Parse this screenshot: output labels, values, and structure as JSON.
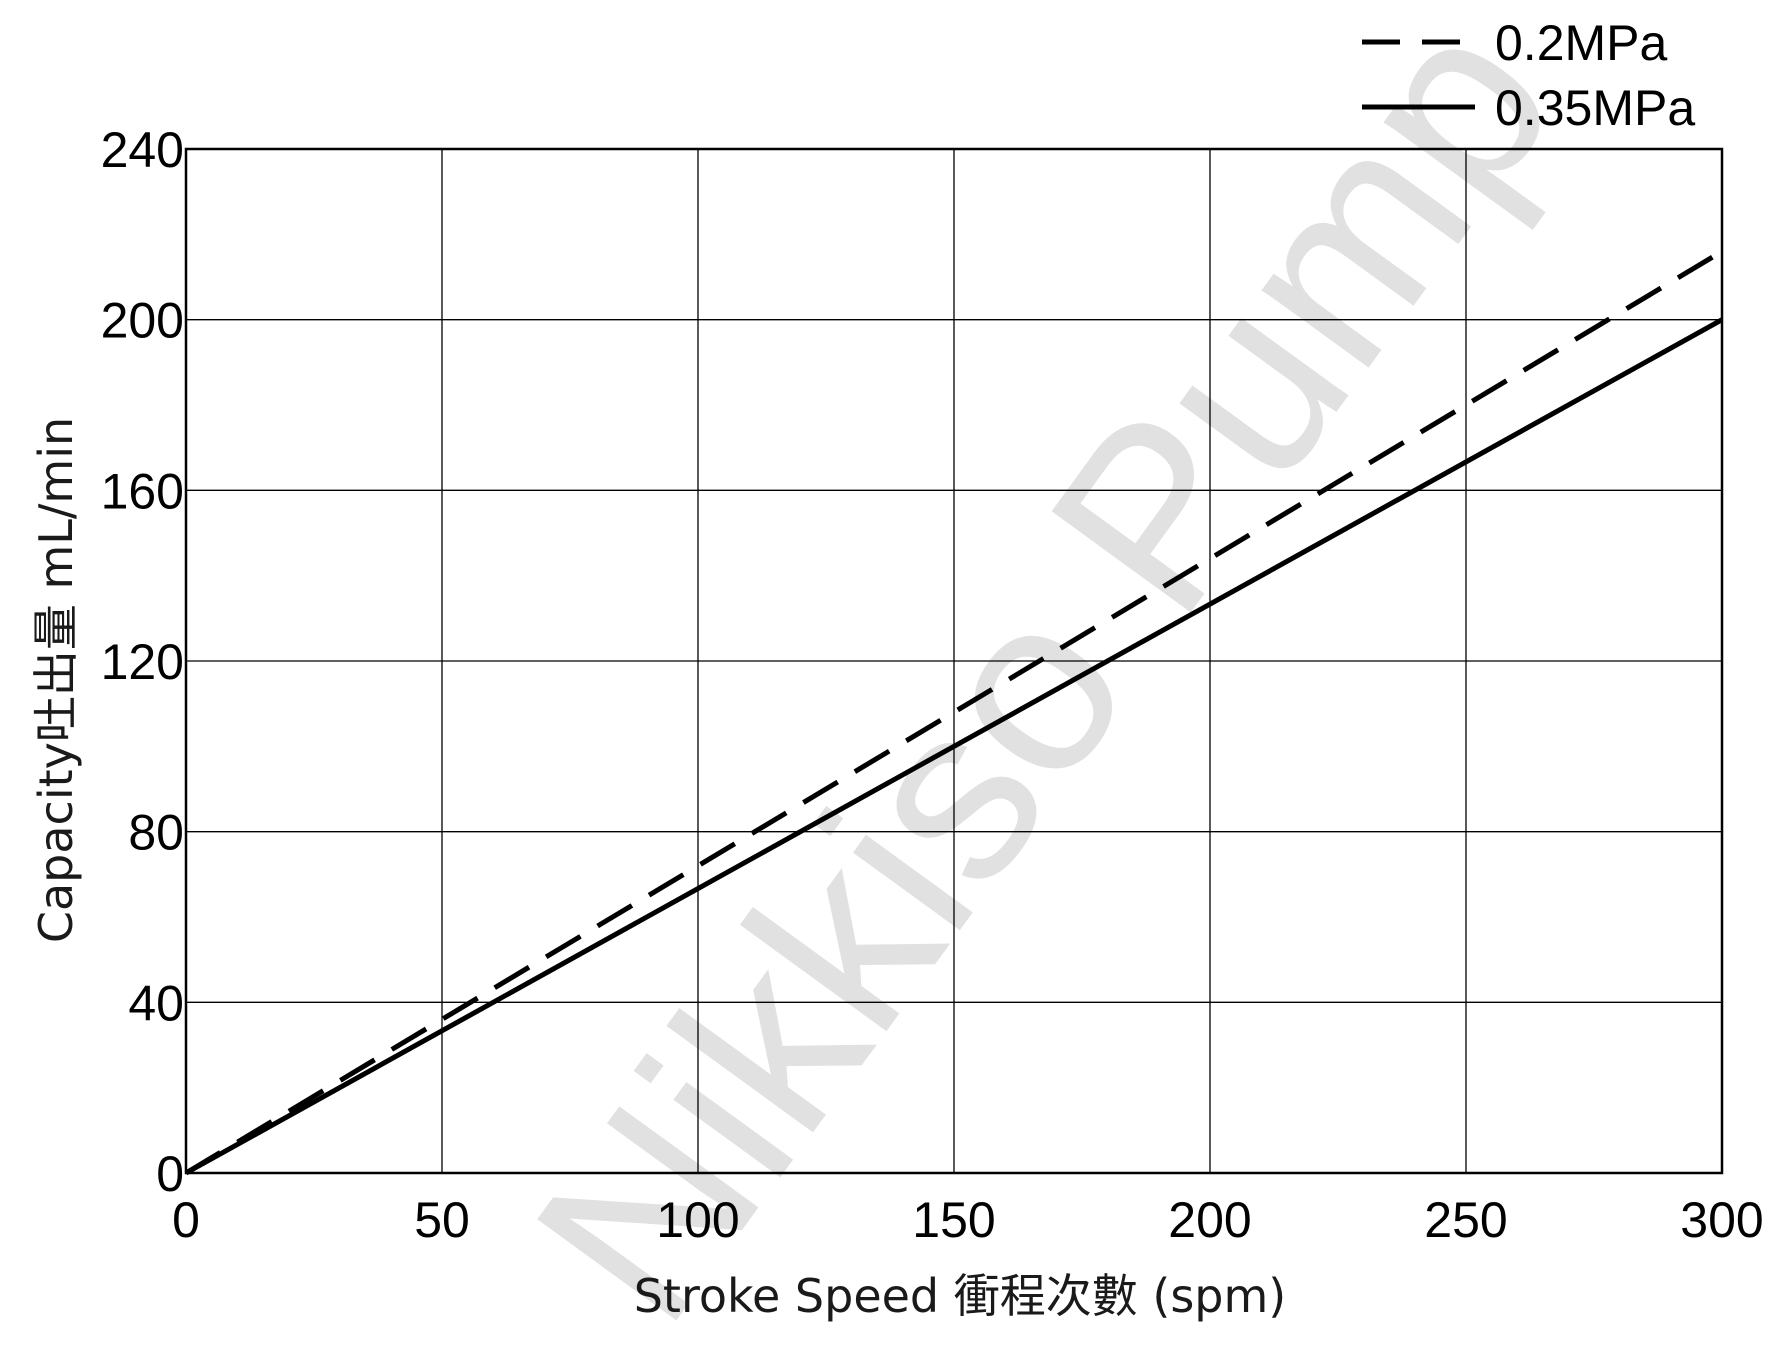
{
  "chart_data": {
    "type": "line",
    "xlabel": "Stroke Speed 衝程次數 (spm)",
    "ylabel": "Capacity吐出量 mL/min",
    "xlim": [
      0,
      300
    ],
    "ylim": [
      0,
      240
    ],
    "x_ticks": [
      "0",
      "50",
      "100",
      "150",
      "200",
      "250",
      "300"
    ],
    "y_ticks": [
      "0",
      "40",
      "80",
      "120",
      "160",
      "200",
      "240"
    ],
    "grid": true,
    "legend_position": "top-right",
    "series": [
      {
        "name": "0.2MPa",
        "style": "dashed",
        "color": "#000000",
        "x": [
          0,
          300
        ],
        "y": [
          0,
          216
        ]
      },
      {
        "name": "0.35MPa",
        "style": "solid",
        "color": "#000000",
        "x": [
          0,
          300
        ],
        "y": [
          0,
          200
        ]
      }
    ]
  },
  "watermark": {
    "text": "Nikkiso Pump",
    "color": "#c8c8c8"
  }
}
